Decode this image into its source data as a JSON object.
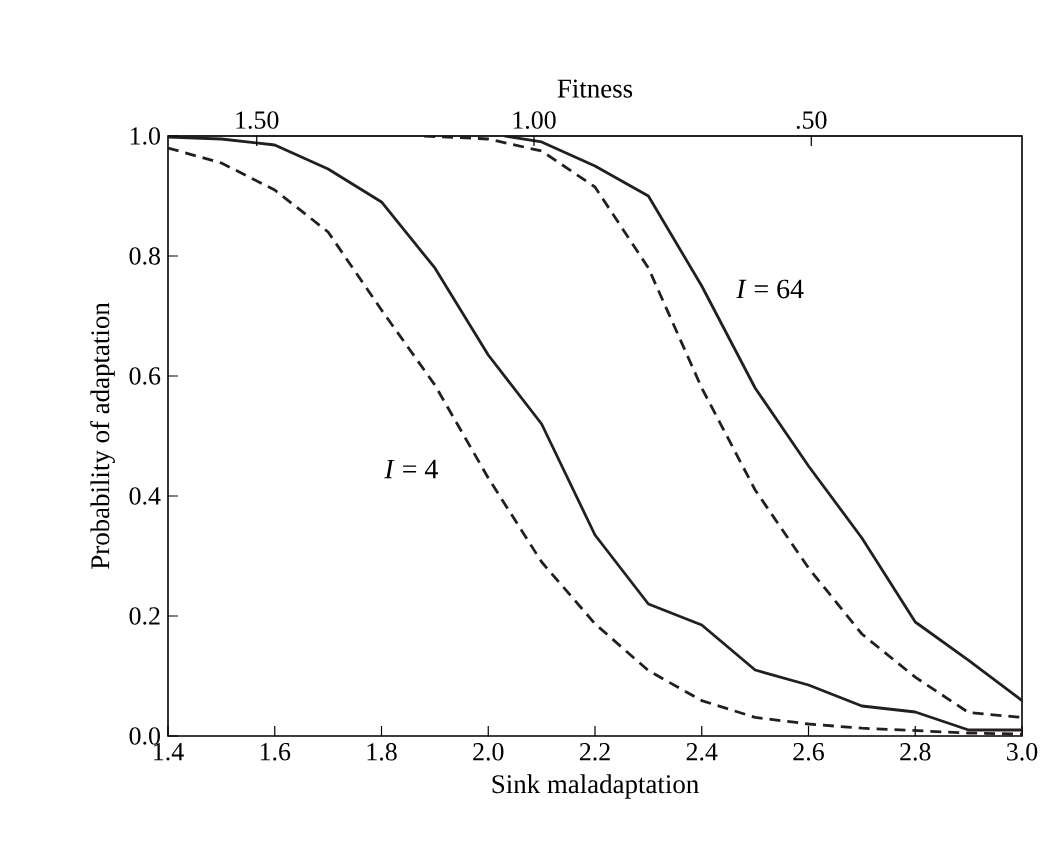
{
  "chart_data": {
    "type": "line",
    "xlabel": "Sink maladaptation",
    "ylabel": "Probability of adaptation",
    "x2label": "Fitness",
    "xlim": [
      1.4,
      3.0
    ],
    "xticks": [
      1.4,
      1.6,
      1.8,
      {
        "value": 2,
        "label": "2.0"
      },
      2.2,
      2.4,
      2.6,
      2.8,
      {
        "value": 3,
        "label": "3.0"
      }
    ],
    "ylim": [
      0.0,
      1.0
    ],
    "yticks": [
      {
        "value": 0,
        "label": "0.0"
      },
      0.2,
      0.4,
      0.6,
      0.8,
      {
        "value": 1,
        "label": "1.0"
      }
    ],
    "x2lim": [
      1.66,
      0.12
    ],
    "x2ticks": [
      {
        "value": 1.5,
        "label": "1.50"
      },
      {
        "value": 1.0,
        "label": "1.00"
      },
      {
        "value": 0.5,
        "label": ".50"
      }
    ],
    "grid": false,
    "marker": "none",
    "series": [
      {
        "color": "#231f20",
        "line_style": "solid",
        "x": [
          1.4,
          1.5,
          1.6,
          1.7,
          1.8,
          1.9,
          2.0,
          2.1,
          2.2,
          2.3,
          2.4,
          2.5,
          2.6,
          2.7,
          2.8,
          2.9,
          3.0
        ],
        "values": [
          0.998,
          0.995,
          0.985,
          0.945,
          0.89,
          0.78,
          0.635,
          0.52,
          0.335,
          0.22,
          0.185,
          0.11,
          0.085,
          0.05,
          0.04,
          0.01,
          0.01
        ]
      },
      {
        "color": "#231f20",
        "line_style": "dashed",
        "x": [
          1.4,
          1.5,
          1.6,
          1.7,
          1.8,
          1.9,
          2.0,
          2.1,
          2.2,
          2.3,
          2.4,
          2.5,
          2.6,
          2.7,
          2.8,
          2.9,
          3.0
        ],
        "values": [
          0.98,
          0.955,
          0.91,
          0.84,
          0.71,
          0.585,
          0.43,
          0.29,
          0.187,
          0.109,
          0.059,
          0.031,
          0.02,
          0.013,
          0.009,
          0.005,
          0.003
        ]
      },
      {
        "color": "#231f20",
        "line_style": "solid",
        "x": [
          2.03,
          2.1,
          2.2,
          2.3,
          2.4,
          2.5,
          2.6,
          2.7,
          2.8,
          2.9,
          3.0
        ],
        "values": [
          1.0,
          0.99,
          0.95,
          0.9,
          0.75,
          0.58,
          0.45,
          0.33,
          0.19,
          0.126,
          0.059
        ]
      },
      {
        "color": "#231f20",
        "line_style": "dashed",
        "x": [
          1.88,
          2.0,
          2.1,
          2.2,
          2.3,
          2.4,
          2.5,
          2.6,
          2.7,
          2.8,
          2.9,
          3.0
        ],
        "values": [
          1.0,
          0.995,
          0.975,
          0.915,
          0.78,
          0.58,
          0.41,
          0.28,
          0.17,
          0.098,
          0.039,
          0.031
        ]
      }
    ],
    "annotations": [
      "*I* = 4",
      "*I* = 64"
    ]
  }
}
